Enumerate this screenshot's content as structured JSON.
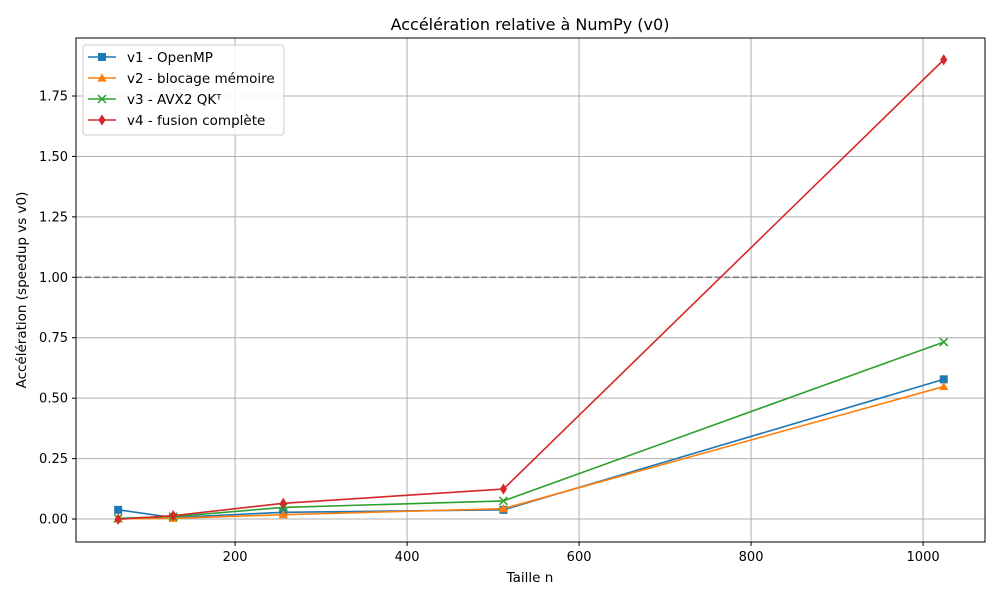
{
  "chart_data": {
    "type": "line",
    "title": "Accélération relative à NumPy (v0)",
    "xlabel": "Taille n",
    "ylabel": "Accélération (speedup vs v0)",
    "xlim": [
      15,
      1072
    ],
    "ylim": [
      -0.095,
      1.99
    ],
    "xticks": [
      200,
      400,
      600,
      800,
      1000
    ],
    "xtick_labels": [
      "200",
      "400",
      "600",
      "800",
      "1000"
    ],
    "yticks": [
      0.0,
      0.25,
      0.5,
      0.75,
      1.0,
      1.25,
      1.5,
      1.75
    ],
    "ytick_labels": [
      "0.00",
      "0.25",
      "0.50",
      "0.75",
      "1.00",
      "1.25",
      "1.50",
      "1.75"
    ],
    "grid": true,
    "legend_position": "top-left",
    "reference_line": {
      "y": 1.0,
      "style": "dashed",
      "color": "#808080"
    },
    "x": [
      64,
      128,
      256,
      512,
      1024
    ],
    "series": [
      {
        "name": "v1 - OpenMP",
        "color": "#1f77b4",
        "marker": "square",
        "values": [
          0.038,
          0.006,
          0.028,
          0.038,
          0.578
        ]
      },
      {
        "name": "v2 - blocage mémoire",
        "color": "#ff7f0e",
        "marker": "triangle",
        "values": [
          0.001,
          0.003,
          0.018,
          0.043,
          0.548
        ]
      },
      {
        "name": "v3 - AVX2 QKᵀ",
        "color": "#2ca02c",
        "marker": "x",
        "values": [
          0.003,
          0.01,
          0.048,
          0.075,
          0.732
        ]
      },
      {
        "name": "v4 - fusion complète",
        "color": "#d62728",
        "marker": "diamond",
        "values": [
          -0.001,
          0.014,
          0.065,
          0.124,
          1.9
        ]
      }
    ]
  }
}
